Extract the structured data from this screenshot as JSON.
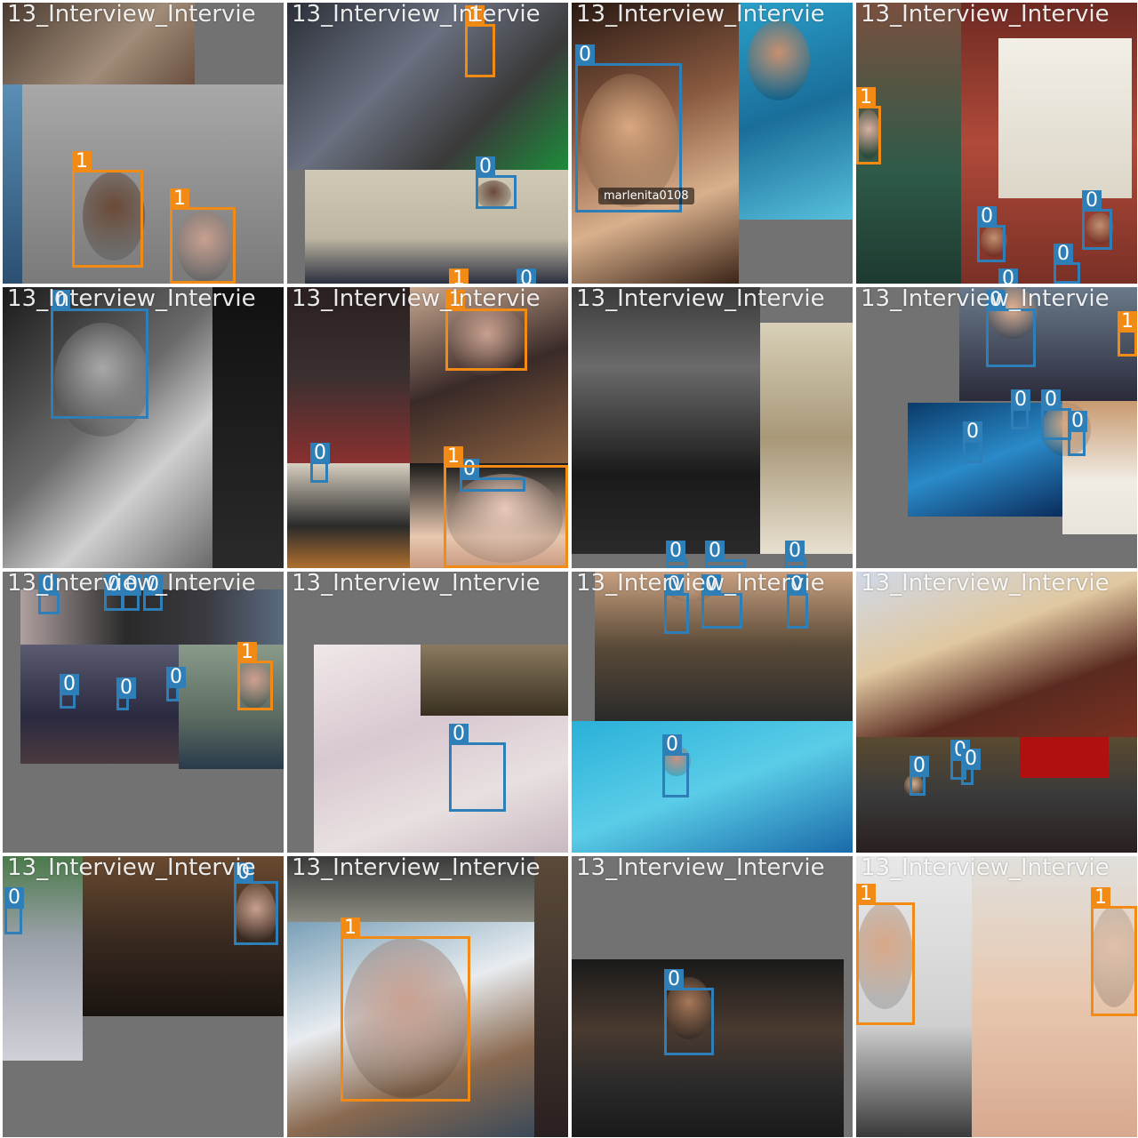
{
  "tile_title": "13_Interview_Intervie",
  "classes": {
    "0": "0",
    "1": "1"
  },
  "class_colors": {
    "0": "#2e7fb8",
    "1": "#f28a16"
  },
  "captions": {
    "tile-3": "marlenita0108"
  },
  "tiles": [
    {
      "id": "tile-1",
      "boxes": [
        {
          "cls": "1"
        },
        {
          "cls": "1"
        }
      ]
    },
    {
      "id": "tile-2",
      "boxes": [
        {
          "cls": "1"
        },
        {
          "cls": "0"
        },
        {
          "cls": "1"
        },
        {
          "cls": "0"
        }
      ]
    },
    {
      "id": "tile-3",
      "boxes": [
        {
          "cls": "0"
        }
      ]
    },
    {
      "id": "tile-4",
      "boxes": [
        {
          "cls": "1"
        },
        {
          "cls": "0"
        },
        {
          "cls": "0"
        },
        {
          "cls": "0"
        },
        {
          "cls": "0"
        }
      ]
    },
    {
      "id": "tile-5",
      "boxes": [
        {
          "cls": "0"
        }
      ]
    },
    {
      "id": "tile-6",
      "boxes": [
        {
          "cls": "1"
        },
        {
          "cls": "0"
        },
        {
          "cls": "0"
        },
        {
          "cls": "1"
        }
      ]
    },
    {
      "id": "tile-7",
      "boxes": [
        {
          "cls": "0"
        },
        {
          "cls": "0"
        },
        {
          "cls": "0"
        }
      ]
    },
    {
      "id": "tile-8",
      "boxes": [
        {
          "cls": "0"
        },
        {
          "cls": "1"
        },
        {
          "cls": "0"
        },
        {
          "cls": "0"
        },
        {
          "cls": "0"
        },
        {
          "cls": "0"
        }
      ]
    },
    {
      "id": "tile-9",
      "boxes": [
        {
          "cls": "0"
        },
        {
          "cls": "0"
        },
        {
          "cls": "0"
        },
        {
          "cls": "0"
        },
        {
          "cls": "0"
        },
        {
          "cls": "0"
        },
        {
          "cls": "0"
        },
        {
          "cls": "1"
        }
      ]
    },
    {
      "id": "tile-10",
      "boxes": [
        {
          "cls": "0"
        }
      ]
    },
    {
      "id": "tile-11",
      "boxes": [
        {
          "cls": "0"
        },
        {
          "cls": "0"
        },
        {
          "cls": "0"
        },
        {
          "cls": "0"
        }
      ]
    },
    {
      "id": "tile-12",
      "boxes": [
        {
          "cls": "0"
        },
        {
          "cls": "0"
        },
        {
          "cls": "0"
        }
      ]
    },
    {
      "id": "tile-13",
      "boxes": [
        {
          "cls": "0"
        },
        {
          "cls": "0"
        }
      ]
    },
    {
      "id": "tile-14",
      "boxes": [
        {
          "cls": "1"
        }
      ]
    },
    {
      "id": "tile-15",
      "boxes": [
        {
          "cls": "0"
        }
      ]
    },
    {
      "id": "tile-16",
      "boxes": [
        {
          "cls": "1"
        },
        {
          "cls": "1"
        }
      ]
    }
  ]
}
